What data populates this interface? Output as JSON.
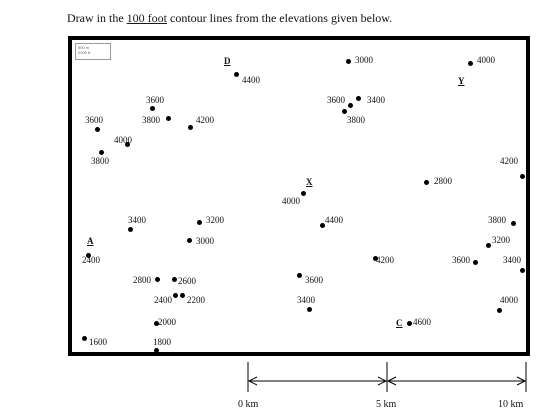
{
  "instruction": {
    "before": "Draw in the ",
    "underlined": "100 foot",
    "after": " contour lines from the elevations given below."
  },
  "scale_badge": {
    "line1": "500 m",
    "line2": "2000 ft"
  },
  "landmarks": {
    "A": "A",
    "C": "C",
    "D": "D",
    "X": "X",
    "Y": "Y"
  },
  "elevations": {
    "e_d": "4400",
    "e_top3000": "3000",
    "e_4000_tr": "4000",
    "e_3600_mid": "3600",
    "e_3400_mid": "3400",
    "e_3800_mid": "3800",
    "e_3600_left": "3600",
    "e_3800_left": "3800",
    "e_4200_left": "4200",
    "e_3600_far": "3600",
    "e_4000_left": "4000",
    "e_3800_low": "3800",
    "e_4200_right": "4200",
    "e_2800_right": "2800",
    "e_4000_x": "4000",
    "e_3400_left": "3400",
    "e_3200": "3200",
    "e_3000": "3000",
    "e_4400_mid": "4400",
    "e_3800_r": "3800",
    "e_3200_r": "3200",
    "e_2400": "2400",
    "e_4200_low": "4200",
    "e_3600_r": "3600",
    "e_3400_r": "3400",
    "e_3600_c": "3600",
    "e_2800": "2800",
    "e_2600": "2600",
    "e_2400_b": "2400",
    "e_2200": "2200",
    "e_3400_c": "3400",
    "e_4000_r": "4000",
    "e_4600": "4600",
    "e_2000": "2000",
    "e_1600": "1600",
    "e_1800": "1800"
  },
  "scale": {
    "zero": "0 km",
    "five": "5 km",
    "ten": "10 km"
  }
}
